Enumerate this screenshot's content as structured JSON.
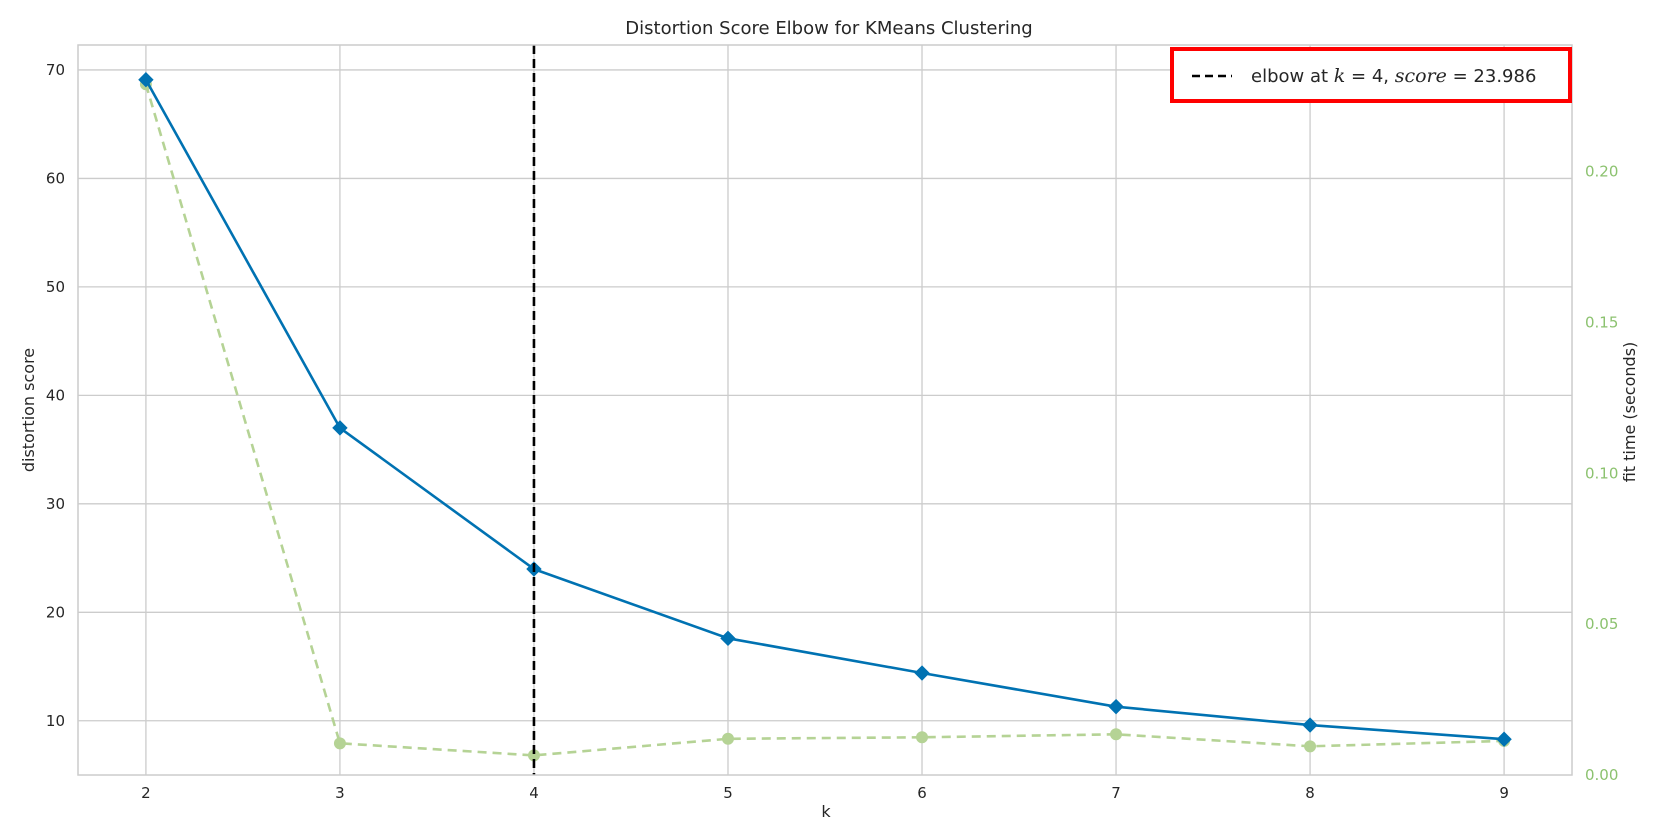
{
  "chart_data": {
    "type": "line",
    "title": "Distortion Score Elbow for KMeans Clustering",
    "xlabel": "k",
    "ylabel": "distortion score",
    "y2label": "fit time (seconds)",
    "x": [
      2,
      3,
      4,
      5,
      6,
      7,
      8,
      9
    ],
    "xlim": [
      1.65,
      9.35
    ],
    "ylim": [
      5.0,
      72.3
    ],
    "y2lim": [
      0.0,
      0.242
    ],
    "x_ticks": [
      "2",
      "3",
      "4",
      "5",
      "6",
      "7",
      "8",
      "9"
    ],
    "y_ticks": [
      "10",
      "20",
      "30",
      "40",
      "50",
      "60",
      "70"
    ],
    "y2_ticks": [
      "0.00",
      "0.05",
      "0.10",
      "0.15",
      "0.20"
    ],
    "grid": true,
    "series": [
      {
        "axis": "left",
        "values": [
          69.1,
          37.0,
          23.986,
          17.6,
          14.4,
          11.3,
          9.6,
          8.3
        ],
        "color": "#0072b2",
        "marker": "diamond",
        "style": "solid"
      },
      {
        "axis": "right",
        "values": [
          0.229,
          0.0105,
          0.0065,
          0.012,
          0.0125,
          0.0135,
          0.0095,
          0.0113
        ],
        "color": "#b5d395",
        "marker": "circle",
        "style": "dashed"
      }
    ],
    "elbow": {
      "k": 4,
      "score": "23.986"
    },
    "legend": {
      "position": "top-right",
      "prefix": "elbow at ",
      "k_label": "k",
      "equals_k": " = 4, ",
      "score_label": "score",
      "equals_score": " = 23.986",
      "highlight_color": "#ff0000"
    },
    "colors": {
      "grid": "#cccccc",
      "axes": "#cccccc",
      "right_axis_text": "#8cc26f",
      "elbow_line": "#000000"
    }
  }
}
